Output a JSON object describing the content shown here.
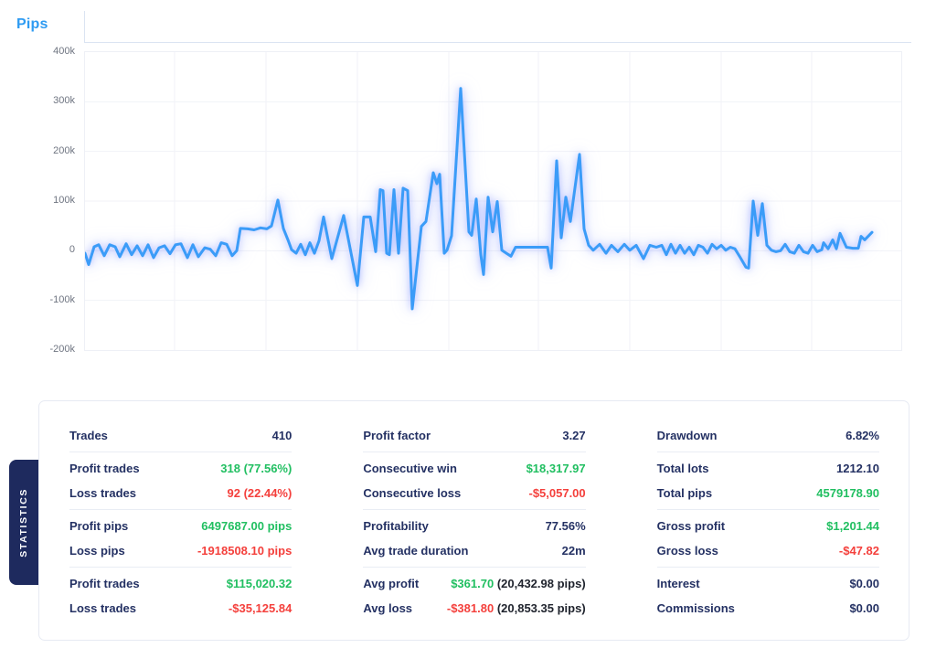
{
  "header": {
    "tab_label": "Pips"
  },
  "colors": {
    "accent_blue": "#2E9BF2",
    "line_blue": "#3B9CF8",
    "navy": "#243163",
    "green": "#21BF61",
    "red": "#F4403C",
    "dark": "#20242E",
    "side_tab_bg": "#1E2A5E"
  },
  "chart_data": {
    "type": "line",
    "title": "Pips",
    "xlabel": "",
    "ylabel": "pips",
    "x_unit": "plot_px_sequence",
    "y_unit": "thousands_of_pips",
    "ylim_k": [
      -200,
      400
    ],
    "y_tick_values_k": [
      400,
      300,
      200,
      100,
      0,
      -100,
      -200
    ],
    "y_tick_labels": [
      "400k",
      "300k",
      "200k",
      "100k",
      "0",
      "-100k",
      "-200k"
    ],
    "grid": true,
    "legend_position": "none",
    "series": [
      {
        "name": "Pips",
        "points": [
          [
            0,
            -5
          ],
          [
            4,
            -28
          ],
          [
            10,
            8
          ],
          [
            15,
            12
          ],
          [
            21,
            -10
          ],
          [
            27,
            12
          ],
          [
            33,
            8
          ],
          [
            38,
            -12
          ],
          [
            45,
            14
          ],
          [
            51,
            -8
          ],
          [
            57,
            10
          ],
          [
            63,
            -10
          ],
          [
            69,
            12
          ],
          [
            75,
            -14
          ],
          [
            81,
            6
          ],
          [
            87,
            10
          ],
          [
            93,
            -6
          ],
          [
            99,
            12
          ],
          [
            105,
            14
          ],
          [
            112,
            -14
          ],
          [
            118,
            12
          ],
          [
            124,
            -12
          ],
          [
            131,
            6
          ],
          [
            137,
            3
          ],
          [
            143,
            -10
          ],
          [
            149,
            16
          ],
          [
            155,
            13
          ],
          [
            161,
            -10
          ],
          [
            166,
            0
          ],
          [
            170,
            45
          ],
          [
            178,
            44
          ],
          [
            185,
            42
          ],
          [
            192,
            46
          ],
          [
            199,
            44
          ],
          [
            204,
            50
          ],
          [
            211,
            102
          ],
          [
            217,
            45
          ],
          [
            222,
            22
          ],
          [
            226,
            2
          ],
          [
            231,
            -5
          ],
          [
            236,
            13
          ],
          [
            241,
            -8
          ],
          [
            246,
            16
          ],
          [
            251,
            -5
          ],
          [
            256,
            20
          ],
          [
            261,
            68
          ],
          [
            270,
            -16
          ],
          [
            283,
            71
          ],
          [
            298,
            -70
          ],
          [
            305,
            68
          ],
          [
            312,
            68
          ],
          [
            318,
            -2
          ],
          [
            323,
            123
          ],
          [
            326,
            121
          ],
          [
            330,
            -5
          ],
          [
            333,
            -8
          ],
          [
            338,
            123
          ],
          [
            343,
            -5
          ],
          [
            348,
            126
          ],
          [
            353,
            121
          ],
          [
            358,
            -117
          ],
          [
            368,
            49
          ],
          [
            373,
            59
          ],
          [
            381,
            157
          ],
          [
            385,
            135
          ],
          [
            388,
            154
          ],
          [
            393,
            -5
          ],
          [
            396,
            1
          ],
          [
            401,
            30
          ],
          [
            411,
            327
          ],
          [
            420,
            38
          ],
          [
            423,
            31
          ],
          [
            428,
            104
          ],
          [
            433,
            -8
          ],
          [
            436,
            -48
          ],
          [
            441,
            108
          ],
          [
            446,
            38
          ],
          [
            451,
            99
          ],
          [
            456,
            1
          ],
          [
            461,
            -5
          ],
          [
            466,
            -11
          ],
          [
            471,
            7
          ],
          [
            506,
            7
          ],
          [
            510,
            -35
          ],
          [
            516,
            181
          ],
          [
            521,
            26
          ],
          [
            526,
            108
          ],
          [
            531,
            59
          ],
          [
            541,
            194
          ],
          [
            546,
            44
          ],
          [
            551,
            11
          ],
          [
            556,
            1
          ],
          [
            563,
            13
          ],
          [
            570,
            -5
          ],
          [
            576,
            11
          ],
          [
            583,
            -2
          ],
          [
            590,
            13
          ],
          [
            596,
            1
          ],
          [
            603,
            11
          ],
          [
            611,
            -16
          ],
          [
            618,
            11
          ],
          [
            625,
            7
          ],
          [
            631,
            11
          ],
          [
            636,
            -8
          ],
          [
            641,
            13
          ],
          [
            646,
            -5
          ],
          [
            651,
            11
          ],
          [
            656,
            -5
          ],
          [
            661,
            7
          ],
          [
            666,
            -8
          ],
          [
            671,
            11
          ],
          [
            676,
            7
          ],
          [
            681,
            -5
          ],
          [
            686,
            13
          ],
          [
            691,
            4
          ],
          [
            696,
            11
          ],
          [
            701,
            1
          ],
          [
            706,
            7
          ],
          [
            711,
            4
          ],
          [
            716,
            -11
          ],
          [
            723,
            -33
          ],
          [
            726,
            -35
          ],
          [
            731,
            100
          ],
          [
            736,
            31
          ],
          [
            741,
            95
          ],
          [
            746,
            11
          ],
          [
            751,
            1
          ],
          [
            756,
            -2
          ],
          [
            761,
            0
          ],
          [
            766,
            13
          ],
          [
            771,
            -2
          ],
          [
            776,
            -5
          ],
          [
            781,
            11
          ],
          [
            786,
            -2
          ],
          [
            791,
            -5
          ],
          [
            796,
            11
          ],
          [
            801,
            -2
          ],
          [
            806,
            2
          ],
          [
            808,
            16
          ],
          [
            813,
            4
          ],
          [
            818,
            22
          ],
          [
            822,
            4
          ],
          [
            826,
            35
          ],
          [
            833,
            7
          ],
          [
            840,
            5
          ],
          [
            846,
            5
          ],
          [
            849,
            29
          ],
          [
            853,
            22
          ],
          [
            861,
            37
          ]
        ]
      }
    ]
  },
  "statistics": {
    "tab_label": "STATISTICS",
    "columns": [
      {
        "groups": [
          [
            {
              "label": "Trades",
              "value": "410",
              "color": "navy"
            }
          ],
          [
            {
              "label": "Profit trades",
              "value": "318 (77.56%)",
              "color": "green"
            },
            {
              "label": "Loss trades",
              "value": "92 (22.44%)",
              "color": "red"
            }
          ],
          [
            {
              "label": "Profit pips",
              "value": "6497687.00 pips",
              "color": "green"
            },
            {
              "label": "Loss pips",
              "value": "-1918508.10 pips",
              "color": "red"
            }
          ],
          [
            {
              "label": "Profit trades",
              "value": "$115,020.32",
              "color": "green"
            },
            {
              "label": "Loss trades",
              "value": "-$35,125.84",
              "color": "red"
            }
          ]
        ]
      },
      {
        "groups": [
          [
            {
              "label": "Profit factor",
              "value": "3.27",
              "color": "navy"
            }
          ],
          [
            {
              "label": "Consecutive win",
              "value": "$18,317.97",
              "color": "green"
            },
            {
              "label": "Consecutive loss",
              "value": "-$5,057.00",
              "color": "red"
            }
          ],
          [
            {
              "label": "Profitability",
              "value": "77.56%",
              "color": "navy"
            },
            {
              "label": "Avg trade duration",
              "value": "22m",
              "color": "navy"
            }
          ],
          [
            {
              "label": "Avg profit",
              "value": "$361.70",
              "color": "green",
              "value2": " (20,432.98 pips)",
              "color2": "dark"
            },
            {
              "label": "Avg loss",
              "value": "-$381.80",
              "color": "red",
              "value2": " (20,853.35 pips)",
              "color2": "dark"
            }
          ]
        ]
      },
      {
        "groups": [
          [
            {
              "label": "Drawdown",
              "value": "6.82%",
              "color": "navy"
            }
          ],
          [
            {
              "label": "Total lots",
              "value": "1212.10",
              "color": "navy"
            },
            {
              "label": "Total pips",
              "value": "4579178.90",
              "color": "green"
            }
          ],
          [
            {
              "label": "Gross profit",
              "value": "$1,201.44",
              "color": "green"
            },
            {
              "label": "Gross loss",
              "value": "-$47.82",
              "color": "red"
            }
          ],
          [
            {
              "label": "Interest",
              "value": "$0.00",
              "color": "navy"
            },
            {
              "label": "Commissions",
              "value": "$0.00",
              "color": "navy"
            }
          ]
        ]
      }
    ]
  }
}
